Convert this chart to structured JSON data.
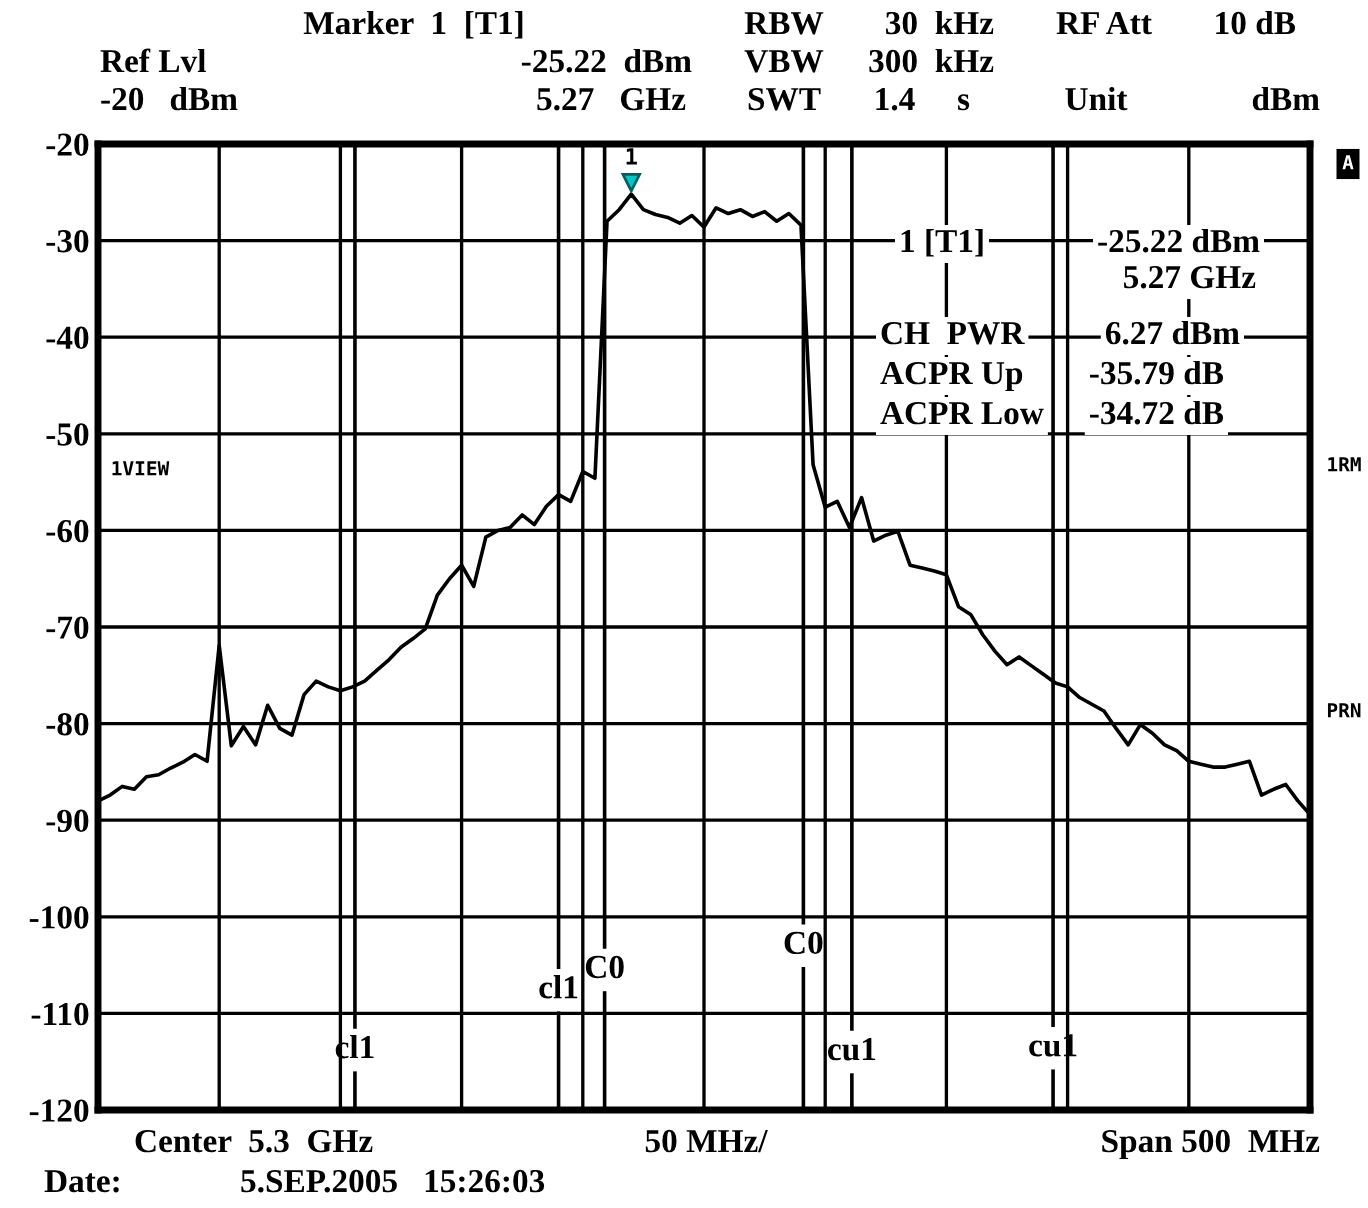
{
  "chart_data": {
    "type": "line",
    "categories": [
      null,
      null,
      null,
      null,
      null,
      null,
      null,
      null,
      null,
      null,
      null,
      null,
      null,
      null,
      null,
      null,
      null,
      null,
      null,
      null,
      null,
      null,
      null,
      null,
      null,
      null,
      null,
      null,
      null,
      null,
      null,
      null,
      null,
      null,
      null,
      null,
      null,
      null,
      null,
      null,
      null,
      null,
      null,
      null,
      null,
      null,
      null,
      null,
      null,
      null,
      null,
      null,
      null,
      null,
      null,
      null,
      null,
      null,
      null,
      null,
      null,
      null,
      null,
      null,
      null,
      null,
      null,
      null,
      null,
      null,
      null,
      null,
      null,
      null,
      null,
      null,
      null,
      null,
      null,
      null,
      null,
      null,
      null,
      null,
      null,
      null,
      null,
      null,
      null,
      null,
      null,
      null,
      null,
      null,
      null,
      null,
      null,
      null,
      null,
      null,
      null
    ],
    "series": [
      {
        "color": "#000000",
        "values": [
          -88,
          -87.4,
          -86.5,
          -86.8,
          -85.5,
          -85.3,
          -84.6,
          -84,
          -83.2,
          -83.9,
          -71.9,
          -82.3,
          -80.3,
          -82.2,
          -78.1,
          -80.5,
          -81.2,
          -77,
          -75.6,
          -76.2,
          -76.6,
          -76.2,
          -75.6,
          -74.5,
          -73.4,
          -72.1,
          -71.2,
          -70.2,
          -66.7,
          -65,
          -63.6,
          -65.8,
          -60.7,
          -60,
          -59.7,
          -58.4,
          -59.4,
          -57.5,
          -56.3,
          -57,
          -53.9,
          -54.6,
          -28,
          -26.8,
          -25.2,
          -26.8,
          -27.3,
          -27.6,
          -28.2,
          -27.4,
          -28.6,
          -26.6,
          -27.2,
          -26.8,
          -27.5,
          -27,
          -28,
          -27.2,
          -28.4,
          -53.2,
          -57.6,
          -57,
          -59.7,
          -56.6,
          -61.1,
          -60.5,
          -60.1,
          -63.6,
          -63.9,
          -64.2,
          -64.6,
          -67.9,
          -68.7,
          -70.8,
          -72.5,
          -73.9,
          -73.1,
          -74,
          -74.9,
          -75.8,
          -76.2,
          -77.3,
          -78,
          -78.7,
          -80.5,
          -82.2,
          -80.1,
          -81,
          -82.2,
          -82.8,
          -83.9,
          -84.2,
          -84.5,
          -84.5,
          -84.2,
          -83.9,
          -87.4,
          -86.8,
          -86.3,
          -88,
          -89.4
        ]
      }
    ],
    "ylim": [
      -120,
      -20
    ],
    "yticks": [
      -20,
      -30,
      -40,
      -50,
      -60,
      -70,
      -80,
      -90,
      -100,
      -110,
      -120
    ],
    "grid": true,
    "marker": "none",
    "line_style": "solid",
    "annotations": [
      {
        "text": "1",
        "y": -25.2
      },
      "Marker  1  [T1]",
      "RBW",
      "30  kHz",
      "RF Att",
      "10 dB",
      "Ref Lvl",
      "-25.22  dBm",
      "VBW",
      "300  kHz",
      "-20   dBm",
      "5.27   GHz",
      "SWT",
      "1.4     s",
      "Unit",
      "dBm",
      "1 [T1]",
      "-25.22 dBm",
      "5.27 GHz",
      "CH  PWR",
      "6.27 dBm",
      "ACPR Up",
      "-35.79 dB",
      "ACPR Low",
      "-34.72 dB",
      "A",
      "1RM",
      "PRN",
      "1VIEW",
      "Center  5.3  GHz",
      "50 MHz/",
      "Span 500  MHz",
      "Date:",
      "5.SEP.2005   15:26:03",
      "cl1",
      "cl1",
      "C0",
      "C0",
      "cu1",
      "cu1"
    ]
  }
}
